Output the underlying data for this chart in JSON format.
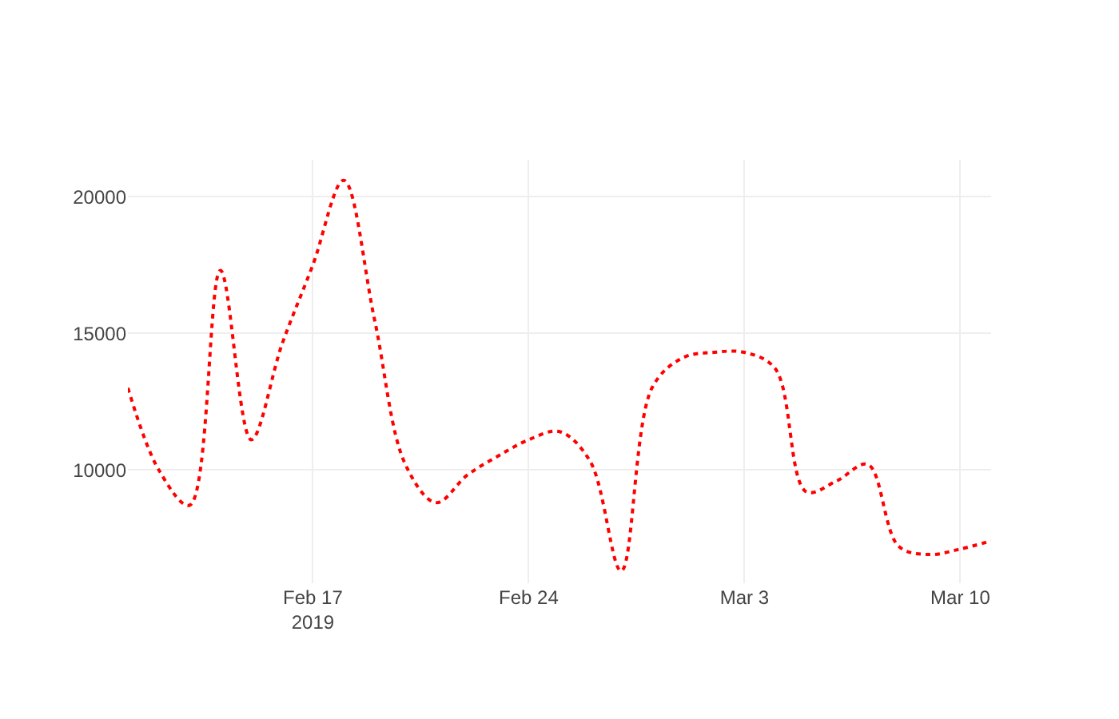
{
  "chart_data": {
    "type": "line",
    "x": [
      "2019-02-11",
      "2019-02-12",
      "2019-02-13",
      "2019-02-14",
      "2019-02-15",
      "2019-02-16",
      "2019-02-17",
      "2019-02-18",
      "2019-02-19",
      "2019-02-20",
      "2019-02-21",
      "2019-02-22",
      "2019-02-23",
      "2019-02-24",
      "2019-02-25",
      "2019-02-26",
      "2019-02-27",
      "2019-02-28",
      "2019-03-01",
      "2019-03-02",
      "2019-03-03",
      "2019-03-04",
      "2019-03-05",
      "2019-03-06",
      "2019-03-07",
      "2019-03-08",
      "2019-03-09",
      "2019-03-10",
      "2019-03-11"
    ],
    "series": [
      {
        "color": "#ff0000",
        "values": [
          13000,
          10000,
          8700,
          17300,
          11100,
          14600,
          17500,
          20600,
          15500,
          10200,
          8800,
          9800,
          10500,
          11100,
          11400,
          10300,
          6300,
          13000,
          14100,
          14300,
          14300,
          13700,
          9200,
          9600,
          10200,
          7200,
          6900,
          7100,
          7400
        ]
      }
    ],
    "xlim": [
      "2019-02-11",
      "2019-03-11"
    ],
    "xticks": [
      {
        "value": "2019-02-17",
        "label": "Feb 17\n2019"
      },
      {
        "value": "2019-02-24",
        "label": "Feb 24"
      },
      {
        "value": "2019-03-03",
        "label": "Mar 3"
      },
      {
        "value": "2019-03-10",
        "label": "Mar 10"
      }
    ],
    "ylim": [
      5850,
      21350
    ],
    "yticks": [
      10000,
      15000,
      20000
    ],
    "grid": true,
    "legend": false,
    "marker": "none",
    "line_style": "dotted"
  }
}
